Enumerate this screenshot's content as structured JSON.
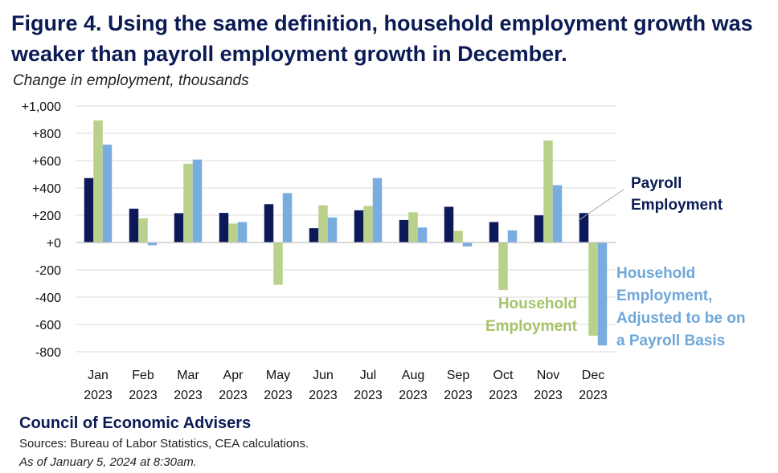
{
  "title": "Figure 4. Using the same definition, household employment growth was weaker than payroll employment growth in December.",
  "subtitle": "Change in employment, thousands",
  "footer": {
    "org": "Council of Economic Advisers",
    "sources": "Sources: Bureau of Labor Statistics, CEA calculations.",
    "as_of": "As of January 5, 2024 at 8:30am."
  },
  "colors": {
    "payroll": "#0d1858",
    "household": "#b9d18a",
    "adjusted": "#7aaddf",
    "payroll_label": "#0b1b54",
    "household_label": "#a7c36a",
    "adjusted_label": "#6fa7da",
    "grid": "#d9d9d9",
    "axis_text": "#111111"
  },
  "chart_data": {
    "type": "bar",
    "title": "Figure 4. Using the same definition, household employment growth was weaker than payroll employment growth in December.",
    "ylabel": "Change in employment, thousands",
    "ylim": [
      -800,
      1000
    ],
    "yticks": [
      1000,
      800,
      600,
      400,
      200,
      0,
      -200,
      -400,
      -600,
      -800
    ],
    "ytick_labels": [
      "+1,000",
      "+800",
      "+600",
      "+400",
      "+200",
      "+0",
      "-200",
      "-400",
      "-600",
      "-800"
    ],
    "categories": [
      [
        "Jan",
        "2023"
      ],
      [
        "Feb",
        "2023"
      ],
      [
        "Mar",
        "2023"
      ],
      [
        "Apr",
        "2023"
      ],
      [
        "May",
        "2023"
      ],
      [
        "Jun",
        "2023"
      ],
      [
        "Jul",
        "2023"
      ],
      [
        "Aug",
        "2023"
      ],
      [
        "Sep",
        "2023"
      ],
      [
        "Oct",
        "2023"
      ],
      [
        "Nov",
        "2023"
      ],
      [
        "Dec",
        "2023"
      ]
    ],
    "series": [
      {
        "name": "Payroll Employment",
        "label_lines": [
          "Payroll",
          "Employment"
        ],
        "color_key": "payroll",
        "values": [
          472,
          248,
          215,
          217,
          281,
          105,
          236,
          165,
          262,
          150,
          199,
          216
        ]
      },
      {
        "name": "Household Employment",
        "label_lines": [
          "Household",
          "Employment"
        ],
        "color_key": "household",
        "values": [
          894,
          177,
          577,
          139,
          -310,
          273,
          268,
          222,
          86,
          -348,
          747,
          -683
        ]
      },
      {
        "name": "Household Employment, Adjusted to be on a Payroll Basis",
        "label_lines": [
          "Household",
          "Employment,",
          "Adjusted to be on",
          "a Payroll Basis"
        ],
        "color_key": "adjusted",
        "values": [
          717,
          -20,
          608,
          150,
          362,
          184,
          472,
          110,
          -29,
          89,
          420,
          -754
        ]
      }
    ],
    "grid": true
  }
}
